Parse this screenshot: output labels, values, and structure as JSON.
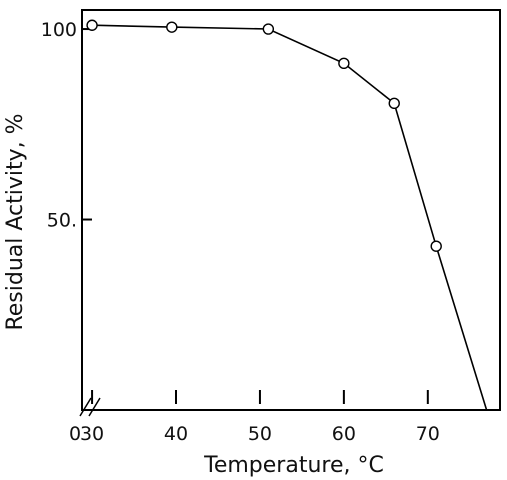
{
  "chart_data": {
    "type": "line",
    "title": "",
    "xlabel": "Temperature, °C",
    "ylabel": "Residual Activity, %",
    "x_axis_break_label": "0",
    "x_ticks": [
      30,
      40,
      50,
      60,
      70
    ],
    "x_tick_labels": [
      "30",
      "40",
      "50",
      "60",
      "70"
    ],
    "y_ticks": [
      50,
      100
    ],
    "y_tick_labels": [
      "50.",
      "100"
    ],
    "xlim": [
      28.8,
      78.6
    ],
    "ylim": [
      0,
      105
    ],
    "grid": false,
    "legend": "none",
    "series": [
      {
        "x": [
          30,
          39.5,
          51,
          60,
          66,
          71,
          77
        ],
        "y": [
          101,
          100.5,
          100,
          91,
          80.5,
          43,
          0
        ],
        "markers": [
          true,
          true,
          true,
          true,
          true,
          true,
          false
        ],
        "marker": "open-circle",
        "color": "#000000"
      }
    ]
  }
}
